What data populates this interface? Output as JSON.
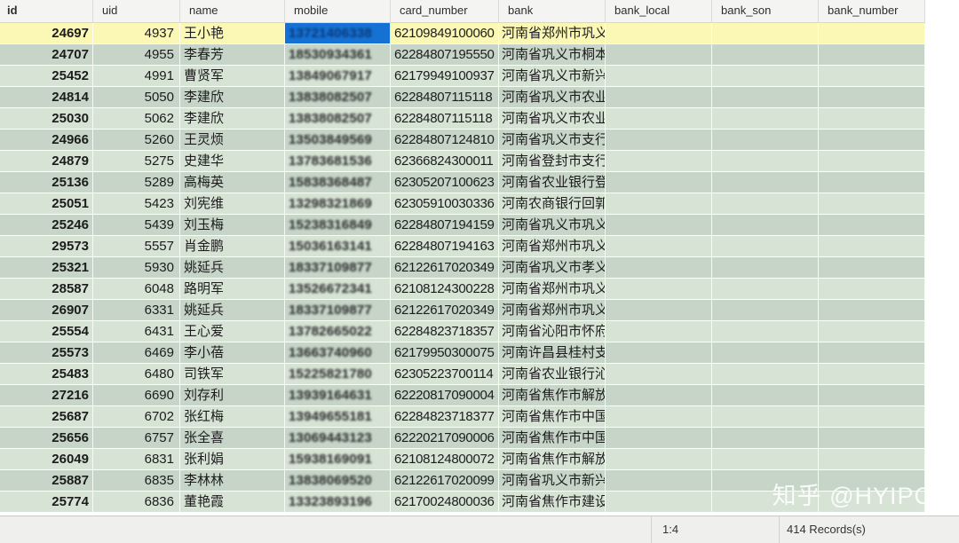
{
  "table": {
    "columns": [
      {
        "key": "id",
        "label": "id"
      },
      {
        "key": "uid",
        "label": "uid"
      },
      {
        "key": "name",
        "label": "name"
      },
      {
        "key": "mobile",
        "label": "mobile"
      },
      {
        "key": "card_number",
        "label": "card_number"
      },
      {
        "key": "bank",
        "label": "bank"
      },
      {
        "key": "bank_local",
        "label": "bank_local"
      },
      {
        "key": "bank_son",
        "label": "bank_son"
      },
      {
        "key": "bank_number",
        "label": "bank_number"
      }
    ],
    "rows": [
      {
        "id": "24697",
        "uid": "4937",
        "name": "王小艳",
        "mobile": "13721406338",
        "card_number": "62109849100060",
        "bank": "河南省郑州市巩义",
        "bank_local": "",
        "bank_son": "",
        "bank_number": ""
      },
      {
        "id": "24707",
        "uid": "4955",
        "name": "李春芳",
        "mobile": "18530934361",
        "card_number": "62284807195550",
        "bank": "河南省巩义市桐本",
        "bank_local": "",
        "bank_son": "",
        "bank_number": ""
      },
      {
        "id": "25452",
        "uid": "4991",
        "name": "曹贤军",
        "mobile": "13849067917",
        "card_number": "62179949100937",
        "bank": "河南省巩义市新兴",
        "bank_local": "",
        "bank_son": "",
        "bank_number": ""
      },
      {
        "id": "24814",
        "uid": "5050",
        "name": "李建欣",
        "mobile": "13838082507",
        "card_number": "62284807115118",
        "bank": "河南省巩义市农业",
        "bank_local": "",
        "bank_son": "",
        "bank_number": ""
      },
      {
        "id": "25030",
        "uid": "5062",
        "name": "李建欣",
        "mobile": "13838082507",
        "card_number": "62284807115118",
        "bank": "河南省巩义市农业",
        "bank_local": "",
        "bank_son": "",
        "bank_number": ""
      },
      {
        "id": "24966",
        "uid": "5260",
        "name": "王灵烦",
        "mobile": "13503849569",
        "card_number": "62284807124810",
        "bank": "河南省巩义市支行",
        "bank_local": "",
        "bank_son": "",
        "bank_number": ""
      },
      {
        "id": "24879",
        "uid": "5275",
        "name": "史建华",
        "mobile": "13783681536",
        "card_number": "62366824300011",
        "bank": "河南省登封市支行",
        "bank_local": "",
        "bank_son": "",
        "bank_number": ""
      },
      {
        "id": "25136",
        "uid": "5289",
        "name": "高梅英",
        "mobile": "15838368487",
        "card_number": "62305207100623",
        "bank": "河南省农业银行登",
        "bank_local": "",
        "bank_son": "",
        "bank_number": ""
      },
      {
        "id": "25051",
        "uid": "5423",
        "name": "刘宪维",
        "mobile": "13298321869",
        "card_number": "62305910030336",
        "bank": "河南农商银行回郭",
        "bank_local": "",
        "bank_son": "",
        "bank_number": ""
      },
      {
        "id": "25246",
        "uid": "5439",
        "name": "刘玉梅",
        "mobile": "15238316849",
        "card_number": "62284807194159",
        "bank": "河南省巩义市巩义",
        "bank_local": "",
        "bank_son": "",
        "bank_number": ""
      },
      {
        "id": "29573",
        "uid": "5557",
        "name": "肖金鹏",
        "mobile": "15036163141",
        "card_number": "62284807194163",
        "bank": "河南省郑州市巩义",
        "bank_local": "",
        "bank_son": "",
        "bank_number": ""
      },
      {
        "id": "25321",
        "uid": "5930",
        "name": "姚延兵",
        "mobile": "18337109877",
        "card_number": "62122617020349",
        "bank": "河南省巩义市孝义",
        "bank_local": "",
        "bank_son": "",
        "bank_number": ""
      },
      {
        "id": "28587",
        "uid": "6048",
        "name": "路明军",
        "mobile": "13526672341",
        "card_number": "62108124300228",
        "bank": "河南省郑州市巩义",
        "bank_local": "",
        "bank_son": "",
        "bank_number": ""
      },
      {
        "id": "26907",
        "uid": "6331",
        "name": "姚延兵",
        "mobile": "18337109877",
        "card_number": "62122617020349",
        "bank": "河南省郑州市巩义",
        "bank_local": "",
        "bank_son": "",
        "bank_number": ""
      },
      {
        "id": "25554",
        "uid": "6431",
        "name": "王心爱",
        "mobile": "13782665022",
        "card_number": "62284823718357",
        "bank": "河南省沁阳市怀府",
        "bank_local": "",
        "bank_son": "",
        "bank_number": ""
      },
      {
        "id": "25573",
        "uid": "6469",
        "name": "李小蓓",
        "mobile": "13663740960",
        "card_number": "62179950300075",
        "bank": "河南许昌县桂村支",
        "bank_local": "",
        "bank_son": "",
        "bank_number": ""
      },
      {
        "id": "25483",
        "uid": "6480",
        "name": "司铁军",
        "mobile": "15225821780",
        "card_number": "62305223700114",
        "bank": "河南省农业银行沁",
        "bank_local": "",
        "bank_son": "",
        "bank_number": ""
      },
      {
        "id": "27216",
        "uid": "6690",
        "name": "刘存利",
        "mobile": "13939164631",
        "card_number": "62220817090004",
        "bank": "河南省焦作市解放",
        "bank_local": "",
        "bank_son": "",
        "bank_number": ""
      },
      {
        "id": "25687",
        "uid": "6702",
        "name": "张红梅",
        "mobile": "13949655181",
        "card_number": "62284823718377",
        "bank": "河南省焦作市中国",
        "bank_local": "",
        "bank_son": "",
        "bank_number": ""
      },
      {
        "id": "25656",
        "uid": "6757",
        "name": "张全喜",
        "mobile": "13069443123",
        "card_number": "62220217090006",
        "bank": "河南省焦作市中国",
        "bank_local": "",
        "bank_son": "",
        "bank_number": ""
      },
      {
        "id": "26049",
        "uid": "6831",
        "name": "张利娟",
        "mobile": "15938169091",
        "card_number": "62108124800072",
        "bank": "河南省焦作市解放",
        "bank_local": "",
        "bank_son": "",
        "bank_number": ""
      },
      {
        "id": "25887",
        "uid": "6835",
        "name": "李林林",
        "mobile": "13838069520",
        "card_number": "62122617020099",
        "bank": "河南省巩义市新兴",
        "bank_local": "",
        "bank_son": "",
        "bank_number": ""
      },
      {
        "id": "25774",
        "uid": "6836",
        "name": "董艳霞",
        "mobile": "13323893196",
        "card_number": "62170024800036",
        "bank": "河南省焦作市建设",
        "bank_local": "",
        "bank_son": "",
        "bank_number": ""
      }
    ],
    "selection": {
      "row_index": 0,
      "column_key": "mobile"
    }
  },
  "status_bar": {
    "position": "1:4",
    "records": "414 Records(s)"
  },
  "watermark": "知乎 @HYIPC",
  "colors": {
    "selection_blue": "#1571d4",
    "selected_row_yellow": "#fbf7b4",
    "row_green_dark": "#c6d5c8",
    "row_green_light": "#d6e3d5"
  }
}
